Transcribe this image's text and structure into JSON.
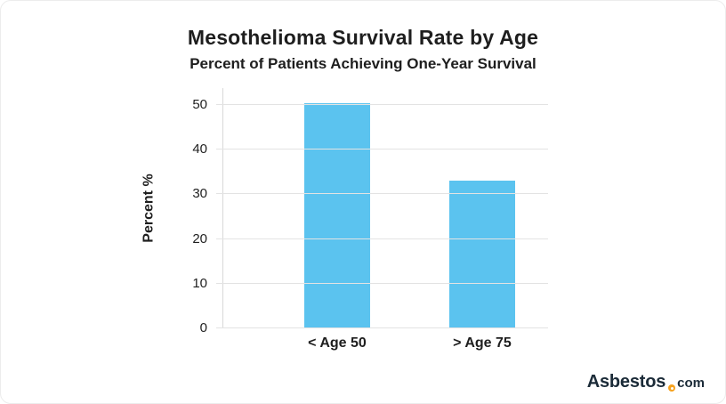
{
  "chart_data": {
    "type": "bar",
    "title": "Mesothelioma Survival Rate by Age",
    "subtitle": "Percent of Patients Achieving One-Year Survival",
    "categories": [
      "< Age 50",
      "> Age 75"
    ],
    "values": [
      50.5,
      33
    ],
    "xlabel": "",
    "ylabel": "Percent %",
    "ylim": [
      0,
      50
    ],
    "yticks": [
      0,
      10,
      20,
      30,
      40,
      50
    ],
    "grid": true,
    "legend": "none",
    "bar_color": "#5BC3EF",
    "gridline_color": "#e3e3e3"
  },
  "branding": {
    "name": "Asbestos",
    "tld": "com",
    "dot_color": "#F6A21E",
    "text_color": "#1B2B38"
  }
}
